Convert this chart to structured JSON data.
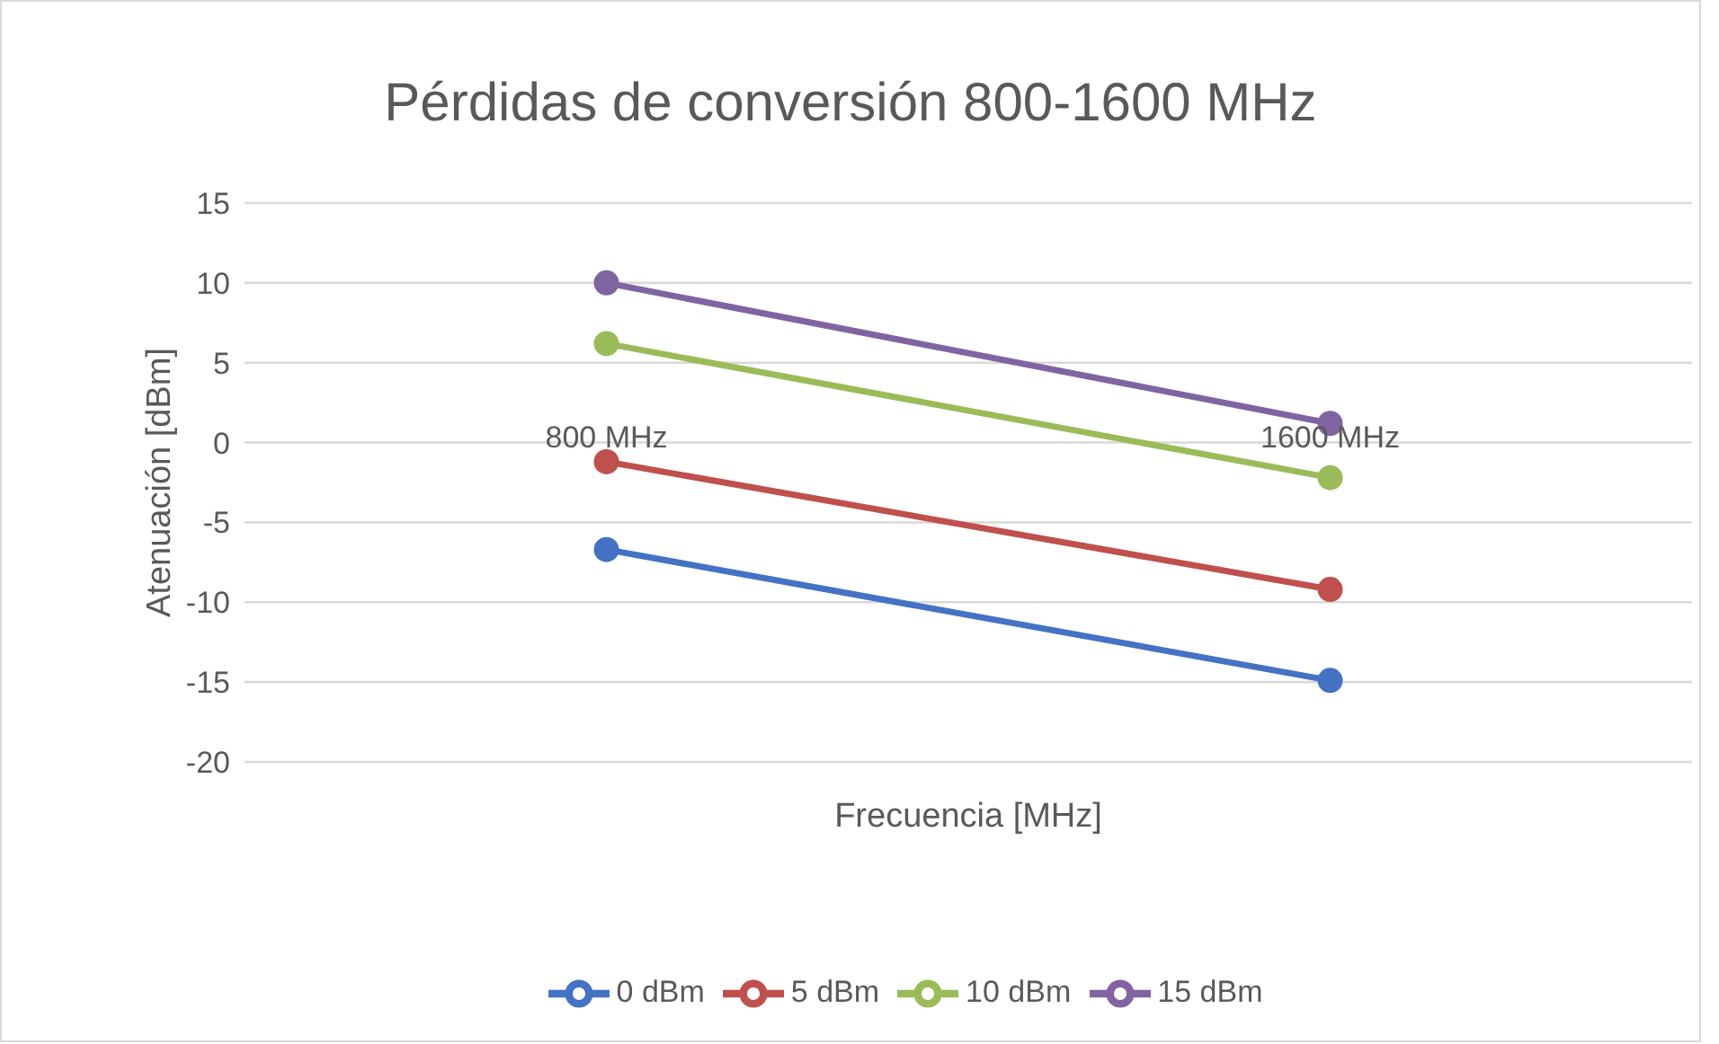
{
  "chart_data": {
    "type": "line",
    "title": "Pérdidas de conversión 800-1600 MHz",
    "xlabel": "Frecuencia [MHz]",
    "ylabel": "Atenuación [dBm]",
    "categories": [
      "800 MHz",
      "1600 MHz"
    ],
    "series": [
      {
        "name": "0 dBm",
        "color": "#4472c4",
        "values": [
          -6.7,
          -14.9
        ]
      },
      {
        "name": "5 dBm",
        "color": "#c0504d",
        "values": [
          -1.2,
          -9.2
        ]
      },
      {
        "name": "10 dBm",
        "color": "#9bbb59",
        "values": [
          6.2,
          -2.2
        ]
      },
      {
        "name": "15 dBm",
        "color": "#8064a2",
        "values": [
          10,
          1.2
        ]
      }
    ],
    "ylim": [
      -20,
      15
    ],
    "yticks": [
      -20,
      -15,
      -10,
      -5,
      0,
      5,
      10,
      15
    ],
    "grid": "y",
    "legend": "bottom",
    "marker": "circle",
    "line_style": "solid"
  }
}
